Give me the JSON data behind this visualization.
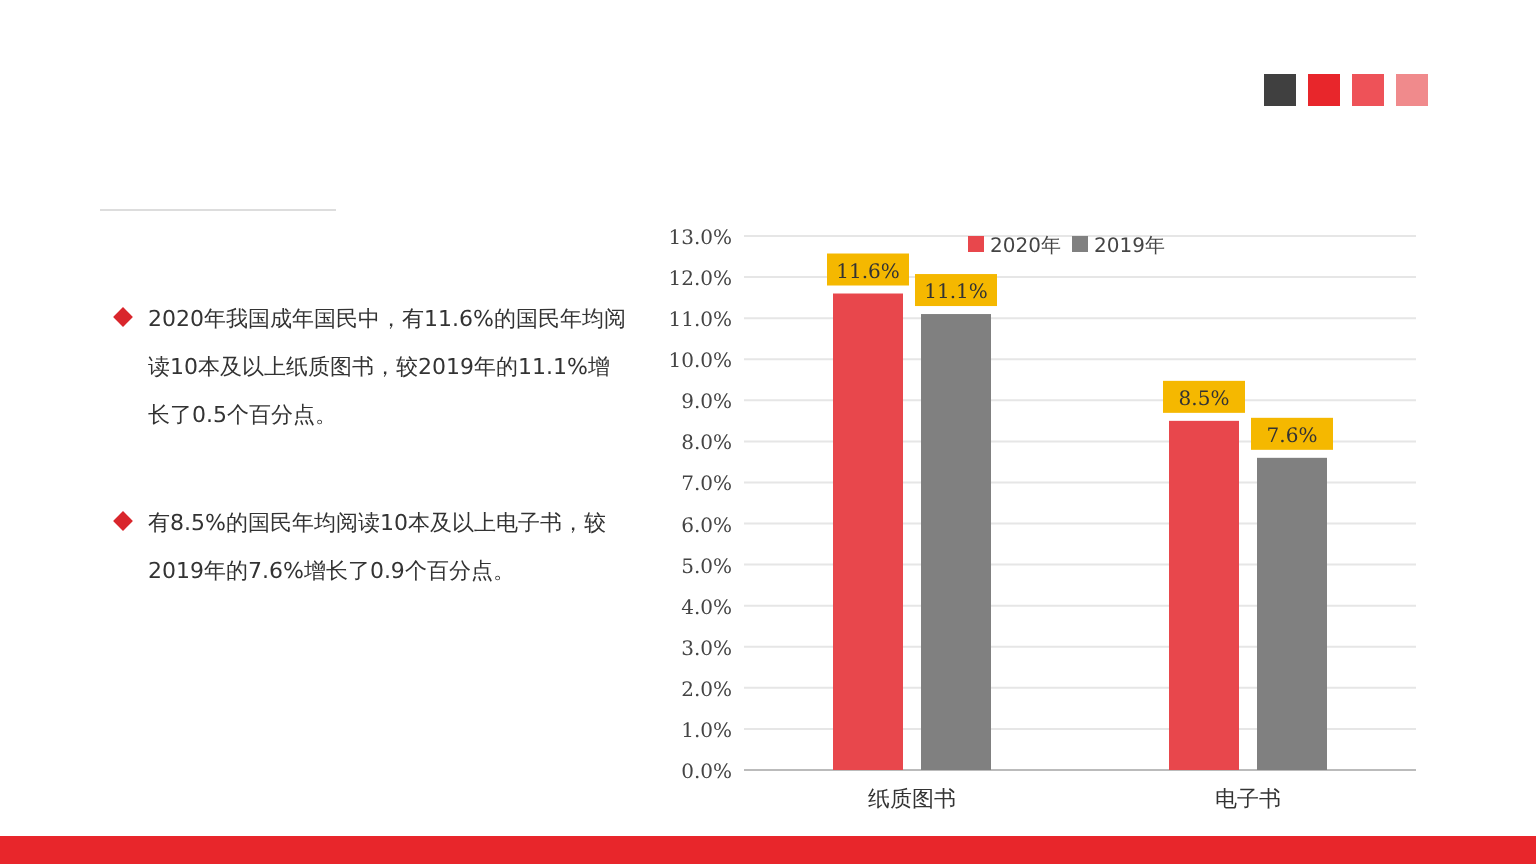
{
  "chart_data": {
    "type": "bar",
    "categories": [
      "纸质图书",
      "电子书"
    ],
    "series": [
      {
        "name": "2020年",
        "color": "#e8474c",
        "values": [
          11.6,
          8.5
        ],
        "value_labels": [
          "11.6%",
          "8.5%"
        ]
      },
      {
        "name": "2019年",
        "color": "#808080",
        "values": [
          11.1,
          7.6
        ],
        "value_labels": [
          "11.1%",
          "7.6%"
        ]
      }
    ],
    "ylim": [
      0,
      13
    ],
    "yticks": [
      {
        "value": 0,
        "label": "0.0%"
      },
      {
        "value": 1,
        "label": "1.0%"
      },
      {
        "value": 2,
        "label": "2.0%"
      },
      {
        "value": 3,
        "label": "3.0%"
      },
      {
        "value": 4,
        "label": "4.0%"
      },
      {
        "value": 5,
        "label": "5.0%"
      },
      {
        "value": 6,
        "label": "6.0%"
      },
      {
        "value": 7,
        "label": "7.0%"
      },
      {
        "value": 8,
        "label": "8.0%"
      },
      {
        "value": 9,
        "label": "9.0%"
      },
      {
        "value": 10,
        "label": "10.0%"
      },
      {
        "value": 11,
        "label": "11.0%"
      },
      {
        "value": 12,
        "label": "12.0%"
      },
      {
        "value": 13,
        "label": "13.0%"
      }
    ],
    "grid": "y",
    "legend": "top",
    "annotations": [
      "2020年我国成年国民中，有11.6%的国民年均阅读10本及以上纸质图书，较2019年的11.1%增长了0.5个百分点。",
      "有8.5%的国民年均阅读10本及以上电子书，较2019年的7.6%增长了0.9个百分点。"
    ]
  }
}
